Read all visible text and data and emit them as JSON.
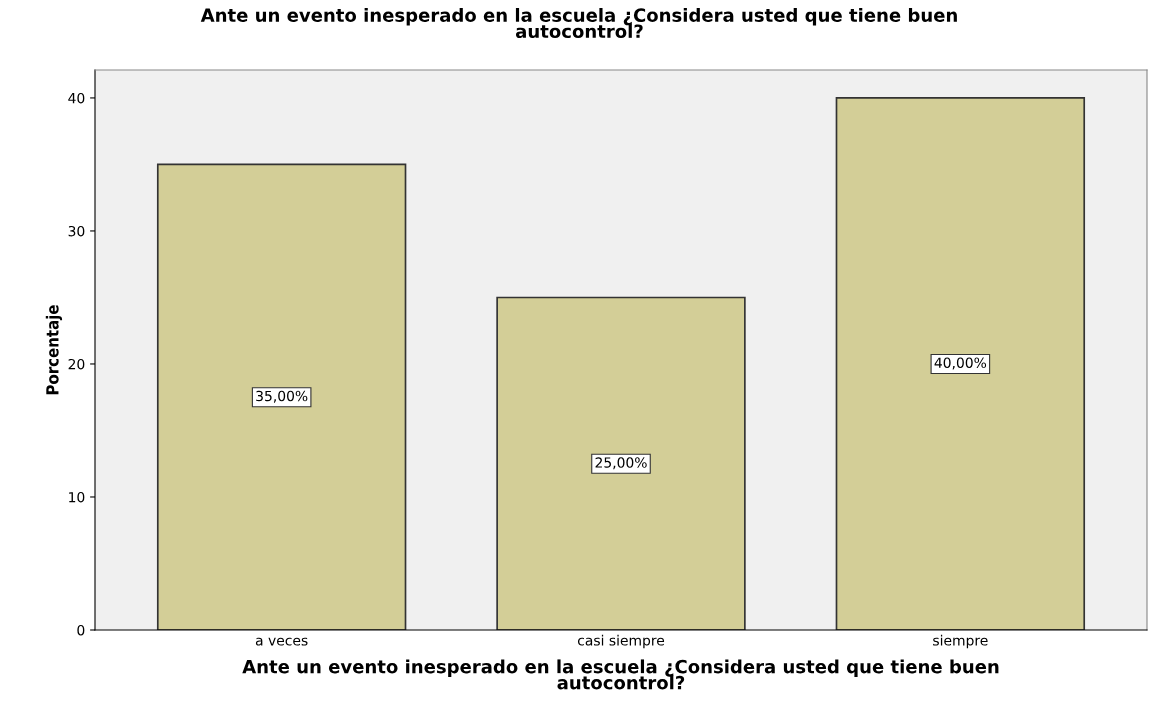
{
  "chart_data": {
    "type": "bar",
    "title": "Ante un evento inesperado en la escuela ¿Considera usted que tiene buen\nautocontrol?",
    "xlabel": "Ante un evento inesperado en la escuela ¿Considera usted que tiene buen\nautocontrol?",
    "ylabel": "Porcentaje",
    "categories": [
      "a veces",
      "casi siempre",
      "siempre"
    ],
    "values": [
      35,
      25,
      40
    ],
    "value_labels": [
      "35,00%",
      "25,00%",
      "40,00%"
    ],
    "color": "#d3ce97",
    "ylim": [
      0,
      42.1
    ],
    "yticks": [
      0,
      10,
      20,
      30,
      40
    ],
    "grid": false
  }
}
